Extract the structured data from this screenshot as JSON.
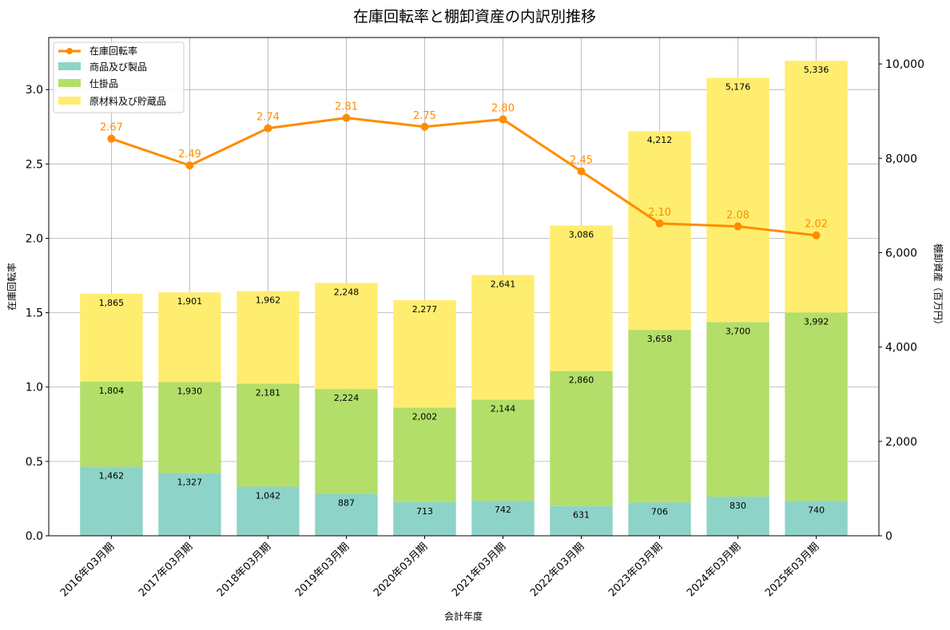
{
  "chart_data": {
    "type": "bar",
    "title": "在庫回転率と棚卸資産の内訳別推移",
    "xlabel": "会計年度",
    "ylabel_left": "在庫回転率",
    "ylabel_right": "棚卸資産（百万円）",
    "ylim_left": [
      0,
      3.35
    ],
    "ylim_right": [
      0,
      10560
    ],
    "yticks_left": [
      "0.0",
      "0.5",
      "1.0",
      "1.5",
      "2.0",
      "2.5",
      "3.0"
    ],
    "yticks_right": [
      "0",
      "2,000",
      "4,000",
      "6,000",
      "8,000",
      "10,000"
    ],
    "grid": true,
    "legend_position": "top-left",
    "categories": [
      "2016年03月期",
      "2017年03月期",
      "2018年03月期",
      "2019年03月期",
      "2020年03月期",
      "2021年03月期",
      "2022年03月期",
      "2023年03月期",
      "2024年03月期",
      "2025年03月期"
    ],
    "bar_series": [
      {
        "name": "商品及び製品",
        "color": "#8dd3c7",
        "values": [
          1462,
          1327,
          1042,
          887,
          713,
          742,
          631,
          706,
          830,
          740
        ],
        "labels": [
          "1,462",
          "1,327",
          "1,042",
          "887",
          "713",
          "742",
          "631",
          "706",
          "830",
          "740"
        ]
      },
      {
        "name": "仕掛品",
        "color": "#b3de69",
        "values": [
          1804,
          1930,
          2181,
          2224,
          2002,
          2144,
          2860,
          3658,
          3700,
          3992
        ],
        "labels": [
          "1,804",
          "1,930",
          "2,181",
          "2,224",
          "2,002",
          "2,144",
          "2,860",
          "3,658",
          "3,700",
          "3,992"
        ]
      },
      {
        "name": "原材料及び貯蔵品",
        "color": "#ffed6f",
        "values": [
          1865,
          1901,
          1962,
          2248,
          2277,
          2641,
          3086,
          4212,
          5176,
          5336
        ],
        "labels": [
          "1,865",
          "1,901",
          "1,962",
          "2,248",
          "2,277",
          "2,641",
          "3,086",
          "4,212",
          "5,176",
          "5,336"
        ]
      }
    ],
    "line_series": {
      "name": "在庫回転率",
      "color": "#ff8c00",
      "values": [
        2.67,
        2.49,
        2.74,
        2.81,
        2.75,
        2.8,
        2.45,
        2.1,
        2.08,
        2.02
      ],
      "labels": [
        "2.67",
        "2.49",
        "2.74",
        "2.81",
        "2.75",
        "2.80",
        "2.45",
        "2.10",
        "2.08",
        "2.02"
      ]
    }
  }
}
